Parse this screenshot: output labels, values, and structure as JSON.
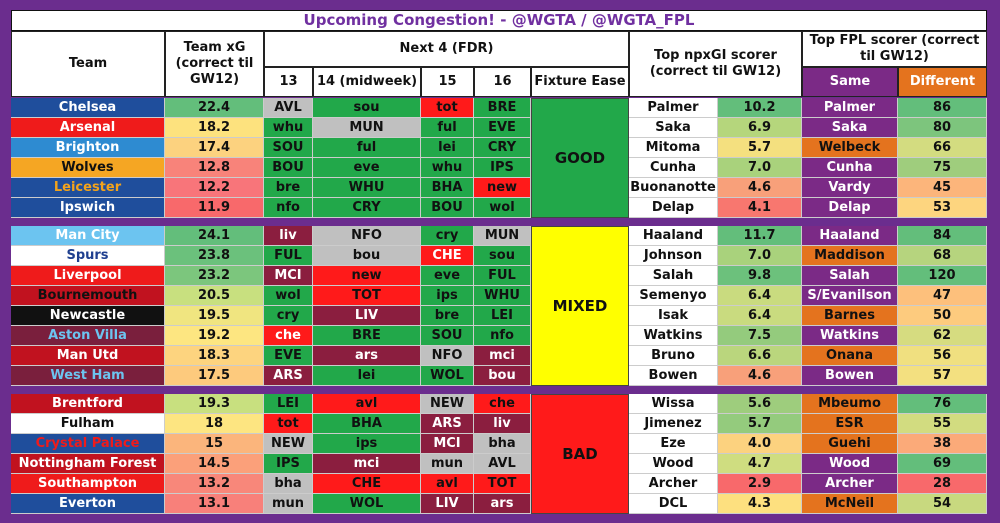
{
  "title": "Upcoming Congestion! - @WGTA / @WGTA_FPL",
  "headers": {
    "team": "Team",
    "team_xg": "Team xG (correct til GW12)",
    "next4": "Next 4 (FDR)",
    "gw13": "13",
    "gw14": "14 (midweek)",
    "gw15": "15",
    "gw16": "16",
    "ease": "Fixture Ease",
    "npxgi": "Top npxGI scorer (correct til GW12)",
    "fpl": "Top FPL scorer (correct til GW12)",
    "same": "Same",
    "different": "Different"
  },
  "groups": [
    {
      "ease": "GOOD",
      "ease_color": "#22a84a",
      "rows": [
        {
          "team": "Chelsea",
          "tc": "#1f4e9c",
          "tf": "#fff",
          "xg": "22.4",
          "xgc": "#63be7b",
          "fx": [
            [
              "AVL",
              "#c0c0c0",
              "#111"
            ],
            [
              "sou",
              "#22a84a",
              "#111"
            ],
            [
              "tot",
              "#ff1a1a",
              "#111"
            ],
            [
              "BRE",
              "#22a84a",
              "#111"
            ]
          ],
          "np": "Palmer",
          "npv": "10.2",
          "npc": "#63be7b",
          "same": "Palmer",
          "samec": "#7b2a86",
          "samef": "#fff",
          "diff": "86",
          "diffc": "#63be7b"
        },
        {
          "team": "Arsenal",
          "tc": "#ef1b1b",
          "tf": "#fff",
          "xg": "18.2",
          "xgc": "#fde27e",
          "fx": [
            [
              "whu",
              "#22a84a",
              "#111"
            ],
            [
              "MUN",
              "#c0c0c0",
              "#111"
            ],
            [
              "ful",
              "#22a84a",
              "#111"
            ],
            [
              "EVE",
              "#22a84a",
              "#111"
            ]
          ],
          "np": "Saka",
          "npv": "6.9",
          "npc": "#b5d67c",
          "same": "Saka",
          "samec": "#7b2a86",
          "samef": "#fff",
          "diff": "80",
          "diffc": "#7dc57d"
        },
        {
          "team": "Brighton",
          "tc": "#2e8bd1",
          "tf": "#fff",
          "xg": "17.4",
          "xgc": "#fcd27f",
          "fx": [
            [
              "SOU",
              "#22a84a",
              "#111"
            ],
            [
              "ful",
              "#22a84a",
              "#111"
            ],
            [
              "lei",
              "#22a84a",
              "#111"
            ],
            [
              "CRY",
              "#22a84a",
              "#111"
            ]
          ],
          "np": "Mitoma",
          "npv": "5.7",
          "npc": "#f4e07f",
          "same": "",
          "samec": "#e4731e",
          "samef": "#111",
          "diff": "66",
          "diffc": "#d3dc80",
          "different_name": "Welbeck"
        },
        {
          "team": "Wolves",
          "tc": "#f5a623",
          "tf": "#111",
          "xg": "12.8",
          "xgc": "#f8837a",
          "fx": [
            [
              "BOU",
              "#22a84a",
              "#111"
            ],
            [
              "eve",
              "#22a84a",
              "#111"
            ],
            [
              "whu",
              "#22a84a",
              "#111"
            ],
            [
              "IPS",
              "#22a84a",
              "#111"
            ]
          ],
          "np": "Cunha",
          "npv": "7.0",
          "npc": "#a9d27c",
          "same": "Cunha",
          "samec": "#7b2a86",
          "samef": "#fff",
          "diff": "75",
          "diffc": "#9fcd7d"
        },
        {
          "team": "Leicester",
          "tc": "#1f4e9c",
          "tf": "#f2a31b",
          "xg": "12.2",
          "xgc": "#f8757a",
          "fx": [
            [
              "bre",
              "#22a84a",
              "#111"
            ],
            [
              "WHU",
              "#22a84a",
              "#111"
            ],
            [
              "BHA",
              "#22a84a",
              "#111"
            ],
            [
              "new",
              "#ff1a1a",
              "#111"
            ]
          ],
          "np": "Buonanotte",
          "npv": "4.6",
          "npc": "#f8a07a",
          "same": "Vardy",
          "samec": "#7b2a86",
          "samef": "#fff",
          "diff": "45",
          "diffc": "#fcb57b"
        },
        {
          "team": "Ipswich",
          "tc": "#1f4e9c",
          "tf": "#fff",
          "xg": "11.9",
          "xgc": "#f8696b",
          "fx": [
            [
              "nfo",
              "#22a84a",
              "#111"
            ],
            [
              "CRY",
              "#22a84a",
              "#111"
            ],
            [
              "BOU",
              "#22a84a",
              "#111"
            ],
            [
              "wol",
              "#22a84a",
              "#111"
            ]
          ],
          "np": "Delap",
          "npv": "4.1",
          "npc": "#f8776f",
          "same": "Delap",
          "samec": "#7b2a86",
          "samef": "#fff",
          "diff": "53",
          "diffc": "#fdd57f"
        }
      ]
    },
    {
      "ease": "MIXED",
      "ease_color": "#ffff00",
      "rows": [
        {
          "team": "Man City",
          "tc": "#6cc4f0",
          "tf": "#fff",
          "xg": "24.1",
          "xgc": "#63be7b",
          "fx": [
            [
              "liv",
              "#8b1e3f",
              "#fff"
            ],
            [
              "NFO",
              "#c0c0c0",
              "#111"
            ],
            [
              "cry",
              "#22a84a",
              "#111"
            ],
            [
              "MUN",
              "#c0c0c0",
              "#111"
            ]
          ],
          "np": "Haaland",
          "npv": "11.7",
          "npc": "#63be7b",
          "same": "Haaland",
          "samec": "#7b2a86",
          "samef": "#fff",
          "diff": "84",
          "diffc": "#63be7b"
        },
        {
          "team": "Spurs",
          "tc": "#ffffff",
          "tf": "#1f3f8f",
          "xg": "23.8",
          "xgc": "#6bc17c",
          "fx": [
            [
              "FUL",
              "#22a84a",
              "#111"
            ],
            [
              "bou",
              "#c0c0c0",
              "#111"
            ],
            [
              "CHE",
              "#ff1a1a",
              "#fff"
            ],
            [
              "sou",
              "#22a84a",
              "#111"
            ]
          ],
          "np": "Johnson",
          "npv": "7.0",
          "npc": "#a9d27c",
          "same": "",
          "samec": "#e4731e",
          "samef": "#111",
          "diff": "68",
          "diffc": "#b6d47e",
          "different_name": "Maddison"
        },
        {
          "team": "Liverpool",
          "tc": "#ef1b1b",
          "tf": "#fff",
          "xg": "23.2",
          "xgc": "#7cc67d",
          "fx": [
            [
              "MCI",
              "#8b1e3f",
              "#fff"
            ],
            [
              "new",
              "#ff1a1a",
              "#111"
            ],
            [
              "eve",
              "#22a84a",
              "#111"
            ],
            [
              "FUL",
              "#22a84a",
              "#111"
            ]
          ],
          "np": "Salah",
          "npv": "9.8",
          "npc": "#6cc17c",
          "same": "Salah",
          "samec": "#7b2a86",
          "samef": "#fff",
          "diff": "120",
          "diffc": "#63be7b"
        },
        {
          "team": "Bournemouth",
          "tc": "#c1121f",
          "tf": "#111",
          "xg": "20.5",
          "xgc": "#c8e07f",
          "fx": [
            [
              "wol",
              "#22a84a",
              "#111"
            ],
            [
              "TOT",
              "#ff1a1a",
              "#111"
            ],
            [
              "ips",
              "#22a84a",
              "#111"
            ],
            [
              "WHU",
              "#22a84a",
              "#111"
            ]
          ],
          "np": "Semenyo",
          "npv": "6.4",
          "npc": "#c9db7f",
          "same": "",
          "samec": "#7b2a86",
          "samef": "#fff",
          "diff": "47",
          "diffc": "#fdc07c",
          "same_name": "S/Evanilson"
        },
        {
          "team": "Newcastle",
          "tc": "#111111",
          "tf": "#fff",
          "xg": "19.5",
          "xgc": "#f0e580",
          "fx": [
            [
              "cry",
              "#22a84a",
              "#111"
            ],
            [
              "LIV",
              "#8b1e3f",
              "#fff"
            ],
            [
              "bre",
              "#22a84a",
              "#111"
            ],
            [
              "LEI",
              "#22a84a",
              "#111"
            ]
          ],
          "np": "Isak",
          "npv": "6.4",
          "npc": "#c9db7f",
          "same": "",
          "samec": "#e4731e",
          "samef": "#111",
          "diff": "50",
          "diffc": "#fdcb7e",
          "different_name": "Barnes"
        },
        {
          "team": "Aston Villa",
          "tc": "#7a1f3d",
          "tf": "#6cc4f0",
          "xg": "19.2",
          "xgc": "#fde681",
          "fx": [
            [
              "che",
              "#ff1a1a",
              "#fff"
            ],
            [
              "BRE",
              "#22a84a",
              "#111"
            ],
            [
              "SOU",
              "#22a84a",
              "#111"
            ],
            [
              "nfo",
              "#22a84a",
              "#111"
            ]
          ],
          "np": "Watkins",
          "npv": "7.5",
          "npc": "#94cb7d",
          "same": "Watkins",
          "samec": "#7b2a86",
          "samef": "#fff",
          "diff": "62",
          "diffc": "#d6dc80"
        },
        {
          "team": "Man Utd",
          "tc": "#c1121f",
          "tf": "#fff",
          "xg": "18.3",
          "xgc": "#fdd47f",
          "fx": [
            [
              "EVE",
              "#22a84a",
              "#111"
            ],
            [
              "ars",
              "#8b1e3f",
              "#fff"
            ],
            [
              "NFO",
              "#c0c0c0",
              "#111"
            ],
            [
              "mci",
              "#8b1e3f",
              "#fff"
            ]
          ],
          "np": "Bruno",
          "npv": "6.6",
          "npc": "#bad67d",
          "same": "",
          "samec": "#e4731e",
          "samef": "#111",
          "diff": "56",
          "diffc": "#f0e080",
          "different_name": "Onana"
        },
        {
          "team": "West Ham",
          "tc": "#7a1f3d",
          "tf": "#6cc4f0",
          "xg": "17.5",
          "xgc": "#fdca7d",
          "fx": [
            [
              "ARS",
              "#8b1e3f",
              "#fff"
            ],
            [
              "lei",
              "#22a84a",
              "#111"
            ],
            [
              "WOL",
              "#22a84a",
              "#111"
            ],
            [
              "bou",
              "#8b1e3f",
              "#fff"
            ]
          ],
          "np": "Bowen",
          "npv": "4.6",
          "npc": "#f8a07a",
          "same": "Bowen",
          "samec": "#7b2a86",
          "samef": "#fff",
          "diff": "57",
          "diffc": "#f3e080"
        }
      ]
    },
    {
      "ease": "BAD",
      "ease_color": "#ff1a1a",
      "rows": [
        {
          "team": "Brentford",
          "tc": "#c1121f",
          "tf": "#fff",
          "xg": "19.3",
          "xgc": "#c8e07f",
          "fx": [
            [
              "LEI",
              "#22a84a",
              "#111"
            ],
            [
              "avl",
              "#ff1a1a",
              "#111"
            ],
            [
              "NEW",
              "#c0c0c0",
              "#111"
            ],
            [
              "che",
              "#ff1a1a",
              "#111"
            ]
          ],
          "np": "Wissa",
          "npv": "5.6",
          "npc": "#9ecd7d",
          "same": "",
          "samec": "#e4731e",
          "samef": "#111",
          "diff": "76",
          "diffc": "#63be7b",
          "different_name": "Mbeumo"
        },
        {
          "team": "Fulham",
          "tc": "#ffffff",
          "tf": "#111",
          "xg": "18",
          "xgc": "#fde581",
          "fx": [
            [
              "tot",
              "#ff1a1a",
              "#111"
            ],
            [
              "BHA",
              "#22a84a",
              "#111"
            ],
            [
              "ARS",
              "#8b1e3f",
              "#fff"
            ],
            [
              "liv",
              "#8b1e3f",
              "#fff"
            ]
          ],
          "np": "Jimenez",
          "npv": "5.7",
          "npc": "#94cb7d",
          "same": "",
          "samec": "#e4731e",
          "samef": "#111",
          "diff": "55",
          "diffc": "#d2dc80",
          "different_name": "ESR"
        },
        {
          "team": "Crystal Palace",
          "tc": "#1f4e9c",
          "tf": "#ef1b1b",
          "xg": "15",
          "xgc": "#fbb57c",
          "fx": [
            [
              "NEW",
              "#c0c0c0",
              "#111"
            ],
            [
              "ips",
              "#22a84a",
              "#111"
            ],
            [
              "MCI",
              "#8b1e3f",
              "#fff"
            ],
            [
              "bha",
              "#c0c0c0",
              "#111"
            ]
          ],
          "np": "Eze",
          "npv": "4.0",
          "npc": "#fcd27f",
          "same": "",
          "samec": "#e4731e",
          "samef": "#111",
          "diff": "38",
          "diffc": "#fbaa79",
          "different_name": "Guehi"
        },
        {
          "team": "Nottingham Forest",
          "tc": "#c1121f",
          "tf": "#fff",
          "xg": "14.5",
          "xgc": "#fba07a",
          "fx": [
            [
              "IPS",
              "#22a84a",
              "#111"
            ],
            [
              "mci",
              "#8b1e3f",
              "#fff"
            ],
            [
              "mun",
              "#c0c0c0",
              "#111"
            ],
            [
              "AVL",
              "#c0c0c0",
              "#111"
            ]
          ],
          "np": "Wood",
          "npv": "4.7",
          "npc": "#cfdd80",
          "same": "Wood",
          "samec": "#7b2a86",
          "samef": "#fff",
          "diff": "69",
          "diffc": "#63be7b"
        },
        {
          "team": "Southampton",
          "tc": "#ef1b1b",
          "tf": "#fff",
          "xg": "13.2",
          "xgc": "#f8877a",
          "fx": [
            [
              "bha",
              "#c0c0c0",
              "#111"
            ],
            [
              "CHE",
              "#ff1a1a",
              "#111"
            ],
            [
              "avl",
              "#ff1a1a",
              "#111"
            ],
            [
              "TOT",
              "#ff1a1a",
              "#111"
            ]
          ],
          "np": "Archer",
          "npv": "2.9",
          "npc": "#f8696b",
          "same": "Archer",
          "samec": "#7b2a86",
          "samef": "#fff",
          "diff": "28",
          "diffc": "#f8696b"
        },
        {
          "team": "Everton",
          "tc": "#1f4e9c",
          "tf": "#fff",
          "xg": "13.1",
          "xgc": "#f8807a",
          "fx": [
            [
              "mun",
              "#c0c0c0",
              "#111"
            ],
            [
              "WOL",
              "#22a84a",
              "#111"
            ],
            [
              "LIV",
              "#8b1e3f",
              "#fff"
            ],
            [
              "ars",
              "#8b1e3f",
              "#fff"
            ]
          ],
          "np": "DCL",
          "npv": "4.3",
          "npc": "#fde07f",
          "same": "",
          "samec": "#e4731e",
          "samef": "#111",
          "diff": "54",
          "diffc": "#c8d97f",
          "different_name": "McNeil"
        }
      ]
    }
  ]
}
